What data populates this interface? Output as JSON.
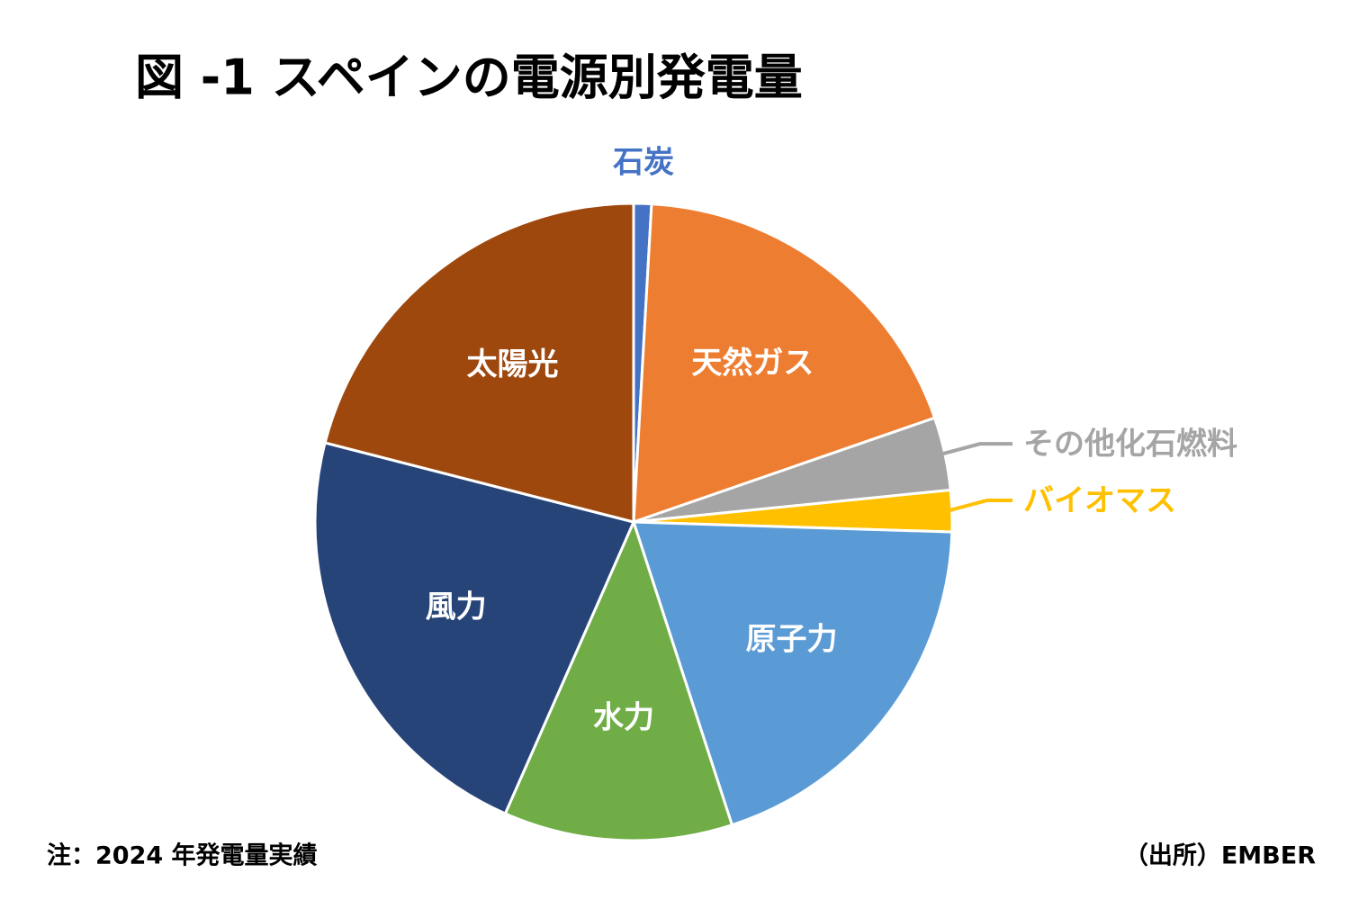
{
  "chart_data": {
    "type": "pie",
    "title": "図 -1 スペインの電源別発電量",
    "categories": [
      "石炭",
      "天然ガス",
      "その他化石燃料",
      "バイオマス",
      "原子力",
      "水力",
      "風力",
      "太陽光"
    ],
    "values": [
      0.9,
      18.8,
      3.7,
      2.1,
      19.5,
      11.6,
      22.4,
      21.0
    ],
    "colors": [
      "#4472c4",
      "#ed7d31",
      "#a5a5a5",
      "#ffc000",
      "#5b9bd5",
      "#70ad47",
      "#264478",
      "#9e480e"
    ],
    "note": "注：2024 年発電量実績",
    "source": "（出所）EMBER"
  }
}
